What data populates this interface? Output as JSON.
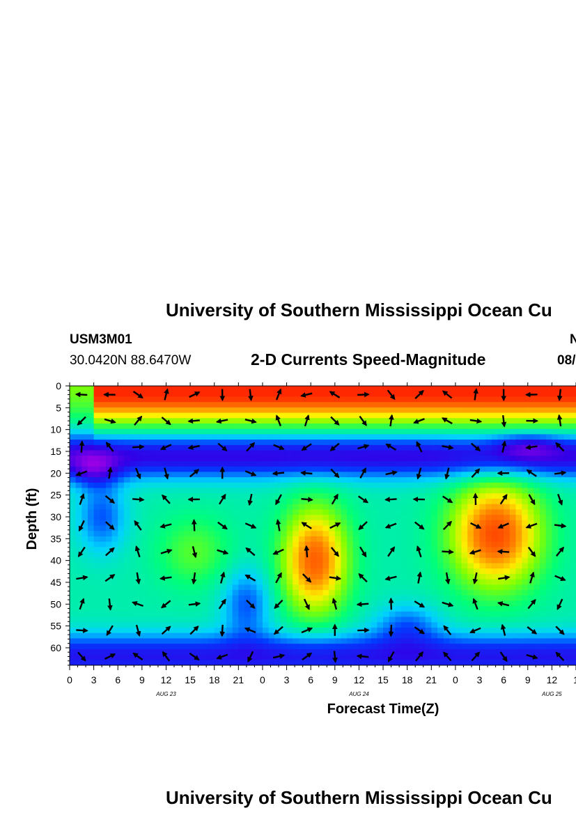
{
  "header": {
    "title": "University of Southern Mississippi Ocean Cu",
    "station_id": "USM3M01",
    "right_id_fragment": "N",
    "location": "30.0420N 88.6470W",
    "subtitle": "2-D Currents Speed-Magnitude",
    "date_fragment": "08/"
  },
  "footer": {
    "title": "University of Southern Mississippi Ocean Cu"
  },
  "chart_data": {
    "type": "heatmap",
    "xlabel": "Forecast Time(Z)",
    "ylabel": "Depth (ft)",
    "x_tick_labels": [
      "0",
      "3",
      "6",
      "9",
      "12",
      "15",
      "18",
      "21",
      "0",
      "3",
      "6",
      "9",
      "12",
      "15",
      "18",
      "21",
      "0",
      "3",
      "6",
      "9",
      "12",
      "1"
    ],
    "x_tick_values": [
      0,
      3,
      6,
      9,
      12,
      15,
      18,
      21,
      24,
      27,
      30,
      33,
      36,
      39,
      42,
      45,
      48,
      51,
      54,
      57,
      60,
      63
    ],
    "day_labels": [
      {
        "label": "AUG 23",
        "x": 12
      },
      {
        "label": "AUG 24",
        "x": 36
      },
      {
        "label": "AUG 25",
        "x": 60
      }
    ],
    "y_tick_labels": [
      "0",
      "5",
      "10",
      "15",
      "20",
      "25",
      "30",
      "35",
      "40",
      "45",
      "50",
      "55",
      "60"
    ],
    "y_tick_values": [
      0,
      5,
      10,
      15,
      20,
      25,
      30,
      35,
      40,
      45,
      50,
      55,
      60
    ],
    "xlim": [
      0,
      63
    ],
    "ylim": [
      0,
      64
    ],
    "y_inverted": true,
    "colormap": "rainbow (purple low → red high)",
    "features": [
      {
        "desc": "surface high-speed layer",
        "x": 24,
        "y": 2,
        "level": 0.95
      },
      {
        "desc": "core",
        "x": 30.5,
        "y": 40,
        "level": 0.9
      },
      {
        "desc": "core",
        "x": 53,
        "y": 34,
        "level": 0.95
      },
      {
        "desc": "core",
        "x": 15.5,
        "y": 38,
        "level": 0.45
      }
    ],
    "vectors_note": "velocity direction arrows overlaid on grid"
  }
}
